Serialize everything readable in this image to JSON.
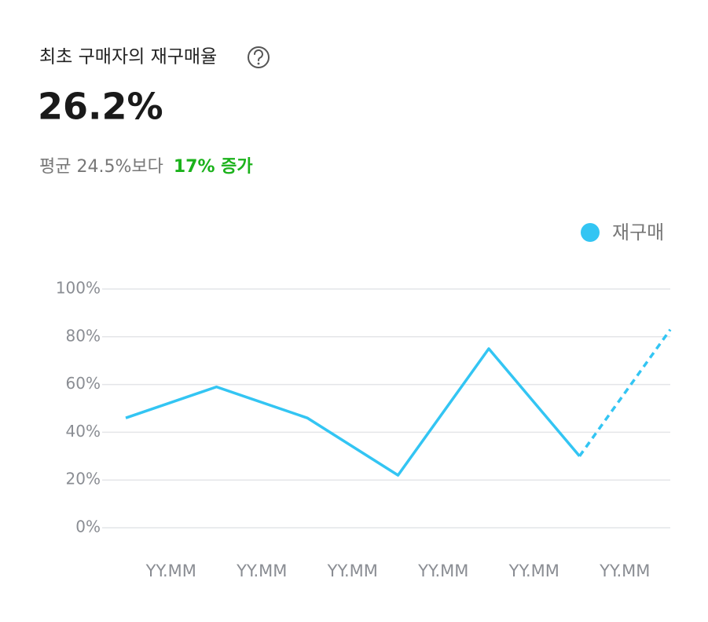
{
  "header": {
    "title": "최초 구매자의 재구매율",
    "value": "26.2%",
    "comparison": "평균 24.5%보다",
    "change": "17% 증가"
  },
  "chart_data": {
    "type": "line",
    "categories": [
      "YY.MM",
      "YY.MM",
      "YY.MM",
      "YY.MM",
      "YY.MM",
      "YY.MM",
      null
    ],
    "series": [
      {
        "name": "재구매",
        "color": "#33c5f3",
        "values": [
          46,
          59,
          46,
          22,
          75,
          30,
          83
        ]
      }
    ],
    "dashed_from_index": 5,
    "ylim": [
      0,
      100
    ],
    "yticks": [
      {
        "value": 0,
        "label": "0%"
      },
      {
        "value": 20,
        "label": "20%"
      },
      {
        "value": 40,
        "label": "40%"
      },
      {
        "value": 60,
        "label": "60%"
      },
      {
        "value": 80,
        "label": "80%"
      },
      {
        "value": 100,
        "label": "100%"
      }
    ],
    "grid": true,
    "legend": "top-right"
  }
}
